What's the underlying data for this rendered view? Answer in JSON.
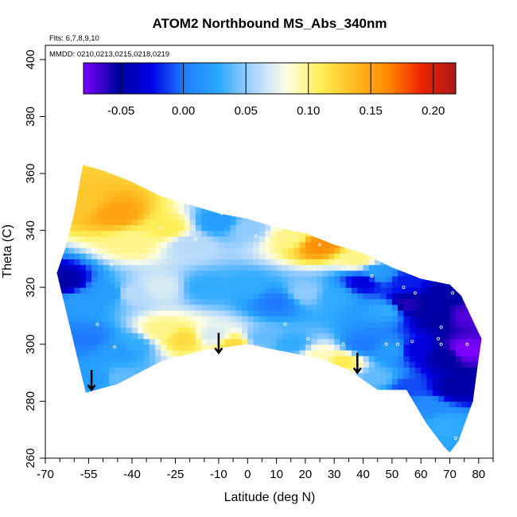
{
  "chart_data": {
    "type": "heatmap",
    "title": "ATOM2 Northbound MS_Abs_340nm",
    "flights_note": "Flts: 6,7,8,9,10",
    "dates_note": "MMDD: 0210,0213,0215,0218,0219",
    "xlabel": "Latitude (deg N)",
    "ylabel": "Theta (C)",
    "xlim": [
      -70,
      85
    ],
    "ylim": [
      260,
      405
    ],
    "x_ticks": [
      -70,
      -55,
      -40,
      -25,
      -10,
      0,
      10,
      20,
      30,
      40,
      50,
      60,
      70,
      80
    ],
    "x_minor_ticks": [
      -65,
      -60,
      -50,
      -45,
      -35,
      -30,
      -20,
      -15,
      -5,
      5,
      15,
      25,
      35,
      45,
      55,
      65,
      75,
      85
    ],
    "y_ticks": [
      260,
      280,
      300,
      320,
      340,
      360,
      380,
      400
    ],
    "colorbar": {
      "range": [
        -0.08,
        0.218
      ],
      "ticks": [
        -0.05,
        0.0,
        0.05,
        0.1,
        0.15,
        0.2
      ],
      "tick_labels": [
        "-0.05",
        "0.00",
        "0.05",
        "0.10",
        "0.15",
        "0.20"
      ],
      "colors": [
        "#7f00ff",
        "#00009f",
        "#0000e6",
        "#1f7fff",
        "#2aa8ff",
        "#aad4ff",
        "#ffffe6",
        "#ffee55",
        "#ffbb22",
        "#ff8800",
        "#ee2200",
        "#aa1a1a"
      ]
    },
    "arrows": [
      {
        "lat": -54,
        "theta": 286
      },
      {
        "lat": -10,
        "theta": 299
      },
      {
        "lat": 38,
        "theta": 292
      }
    ],
    "coverage_bottom": [
      [
        -56,
        283
      ],
      [
        -45,
        286
      ],
      [
        -30,
        294
      ],
      [
        -15,
        298
      ],
      [
        0,
        300
      ],
      [
        15,
        297
      ],
      [
        25,
        295
      ],
      [
        35,
        291
      ],
      [
        45,
        284
      ],
      [
        55,
        284
      ],
      [
        62,
        272
      ],
      [
        68,
        264
      ],
      [
        70,
        262
      ],
      [
        73,
        266
      ],
      [
        78,
        280
      ],
      [
        80,
        295
      ],
      [
        81,
        302
      ]
    ],
    "coverage_top": [
      [
        -66,
        325
      ],
      [
        -63,
        334
      ],
      [
        -60,
        346
      ],
      [
        -57,
        363
      ],
      [
        -50,
        361
      ],
      [
        -40,
        357
      ],
      [
        -30,
        352
      ],
      [
        -20,
        349
      ],
      [
        -10,
        346
      ],
      [
        0,
        344
      ],
      [
        10,
        341
      ],
      [
        20,
        339
      ],
      [
        30,
        335
      ],
      [
        40,
        332
      ],
      [
        50,
        327
      ],
      [
        60,
        323
      ],
      [
        70,
        321
      ],
      [
        74,
        317
      ],
      [
        80,
        304
      ]
    ],
    "value_points": [
      {
        "lat": -58,
        "theta": 350,
        "value": 0.13
      },
      {
        "lat": -45,
        "theta": 346,
        "value": 0.15
      },
      {
        "lat": -40,
        "theta": 336,
        "value": 0.1
      },
      {
        "lat": -28,
        "theta": 341,
        "value": 0.11
      },
      {
        "lat": -20,
        "theta": 335,
        "value": 0.06
      },
      {
        "lat": -10,
        "theta": 343,
        "value": 0.02
      },
      {
        "lat": 0,
        "theta": 341,
        "value": 0.05
      },
      {
        "lat": 15,
        "theta": 338,
        "value": 0.1
      },
      {
        "lat": 25,
        "theta": 335,
        "value": 0.16
      },
      {
        "lat": 38,
        "theta": 330,
        "value": 0.1
      },
      {
        "lat": 45,
        "theta": 325,
        "value": 0.02
      },
      {
        "lat": 55,
        "theta": 322,
        "value": -0.02
      },
      {
        "lat": 68,
        "theta": 318,
        "value": -0.05
      },
      {
        "lat": -64,
        "theta": 322,
        "value": -0.05
      },
      {
        "lat": -58,
        "theta": 315,
        "value": 0.02
      },
      {
        "lat": -48,
        "theta": 318,
        "value": 0.02
      },
      {
        "lat": -40,
        "theta": 318,
        "value": 0.06
      },
      {
        "lat": -30,
        "theta": 320,
        "value": 0.07
      },
      {
        "lat": -15,
        "theta": 320,
        "value": 0.03
      },
      {
        "lat": 0,
        "theta": 320,
        "value": 0.03
      },
      {
        "lat": 10,
        "theta": 315,
        "value": 0.0
      },
      {
        "lat": 20,
        "theta": 318,
        "value": 0.05
      },
      {
        "lat": 30,
        "theta": 317,
        "value": 0.03
      },
      {
        "lat": 40,
        "theta": 322,
        "value": -0.03
      },
      {
        "lat": 48,
        "theta": 312,
        "value": 0.03
      },
      {
        "lat": 55,
        "theta": 314,
        "value": -0.06
      },
      {
        "lat": 65,
        "theta": 310,
        "value": -0.05
      },
      {
        "lat": 76,
        "theta": 310,
        "value": -0.07
      },
      {
        "lat": -55,
        "theta": 302,
        "value": 0.0
      },
      {
        "lat": -45,
        "theta": 298,
        "value": 0.02
      },
      {
        "lat": -40,
        "theta": 300,
        "value": 0.03
      },
      {
        "lat": -30,
        "theta": 305,
        "value": 0.1
      },
      {
        "lat": -22,
        "theta": 302,
        "value": 0.12
      },
      {
        "lat": -12,
        "theta": 303,
        "value": 0.07
      },
      {
        "lat": -5,
        "theta": 300,
        "value": 0.12
      },
      {
        "lat": 5,
        "theta": 302,
        "value": 0.04
      },
      {
        "lat": 15,
        "theta": 300,
        "value": 0.03
      },
      {
        "lat": 25,
        "theta": 296,
        "value": 0.09
      },
      {
        "lat": 33,
        "theta": 294,
        "value": 0.11
      },
      {
        "lat": 40,
        "theta": 300,
        "value": 0.0
      },
      {
        "lat": 50,
        "theta": 298,
        "value": 0.02
      },
      {
        "lat": 58,
        "theta": 298,
        "value": -0.03
      },
      {
        "lat": 68,
        "theta": 296,
        "value": -0.05
      },
      {
        "lat": 75,
        "theta": 298,
        "value": -0.08
      },
      {
        "lat": -52,
        "theta": 288,
        "value": 0.02
      },
      {
        "lat": -45,
        "theta": 288,
        "value": 0.04
      },
      {
        "lat": 45,
        "theta": 288,
        "value": 0.04
      },
      {
        "lat": 55,
        "theta": 285,
        "value": -0.01
      },
      {
        "lat": 62,
        "theta": 278,
        "value": 0.01
      },
      {
        "lat": 68,
        "theta": 272,
        "value": 0.03
      },
      {
        "lat": 72,
        "theta": 285,
        "value": -0.05
      }
    ],
    "sample_markers": [
      {
        "lat": -47,
        "theta": 328
      },
      {
        "lat": -52,
        "theta": 307
      },
      {
        "lat": -46,
        "theta": 299
      },
      {
        "lat": -30,
        "theta": 341
      },
      {
        "lat": -18,
        "theta": 337
      },
      {
        "lat": -9,
        "theta": 346
      },
      {
        "lat": 3,
        "theta": 338
      },
      {
        "lat": 11,
        "theta": 340
      },
      {
        "lat": 25,
        "theta": 335
      },
      {
        "lat": 35,
        "theta": 334
      },
      {
        "lat": 43,
        "theta": 324
      },
      {
        "lat": 54,
        "theta": 320
      },
      {
        "lat": 58,
        "theta": 318
      },
      {
        "lat": 71,
        "theta": 318
      },
      {
        "lat": 67,
        "theta": 306
      },
      {
        "lat": 67,
        "theta": 300
      },
      {
        "lat": 76,
        "theta": 300
      },
      {
        "lat": 66,
        "theta": 302
      },
      {
        "lat": 13,
        "theta": 307
      },
      {
        "lat": 21,
        "theta": 302
      },
      {
        "lat": 33,
        "theta": 300
      },
      {
        "lat": 48,
        "theta": 300
      },
      {
        "lat": 52,
        "theta": 300
      },
      {
        "lat": 57,
        "theta": 301
      },
      {
        "lat": 20,
        "theta": 293
      },
      {
        "lat": 72,
        "theta": 267
      }
    ]
  }
}
